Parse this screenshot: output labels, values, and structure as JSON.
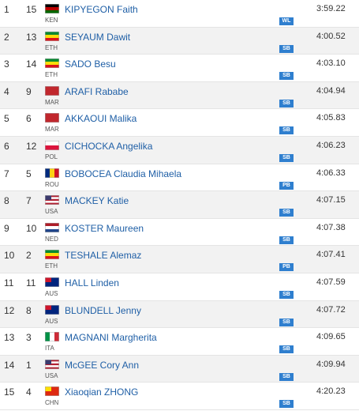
{
  "rows": [
    {
      "rank": 1,
      "bib": 15,
      "country": "KEN",
      "name": "KIPYEGON Faith",
      "badge": "WL",
      "time": "3:59.22"
    },
    {
      "rank": 2,
      "bib": 13,
      "country": "ETH",
      "name": "SEYAUM Dawit",
      "badge": "SB",
      "time": "4:00.52"
    },
    {
      "rank": 3,
      "bib": 14,
      "country": "ETH",
      "name": "SADO Besu",
      "badge": "SB",
      "time": "4:03.10"
    },
    {
      "rank": 4,
      "bib": 9,
      "country": "MAR",
      "name": "ARAFI Rababe",
      "badge": "SB",
      "time": "4:04.94"
    },
    {
      "rank": 5,
      "bib": 6,
      "country": "MAR",
      "name": "AKKAOUI Malika",
      "badge": "SB",
      "time": "4:05.83"
    },
    {
      "rank": 6,
      "bib": 12,
      "country": "POL",
      "name": "CICHOCKA Angelika",
      "badge": "SB",
      "time": "4:06.23"
    },
    {
      "rank": 7,
      "bib": 5,
      "country": "ROU",
      "name": "BOBOCEA Claudia Mihaela",
      "badge": "PB",
      "time": "4:06.33"
    },
    {
      "rank": 8,
      "bib": 7,
      "country": "USA",
      "name": "MACKEY Katie",
      "badge": "SB",
      "time": "4:07.15"
    },
    {
      "rank": 9,
      "bib": 10,
      "country": "NED",
      "name": "KOSTER Maureen",
      "badge": "SB",
      "time": "4:07.38"
    },
    {
      "rank": 10,
      "bib": 2,
      "country": "ETH",
      "name": "TESHALE Alemaz",
      "badge": "PB",
      "time": "4:07.41"
    },
    {
      "rank": 11,
      "bib": 11,
      "country": "AUS",
      "name": "HALL Linden",
      "badge": "SB",
      "time": "4:07.59"
    },
    {
      "rank": 12,
      "bib": 8,
      "country": "AUS",
      "name": "BLUNDELL Jenny",
      "badge": "SB",
      "time": "4:07.72"
    },
    {
      "rank": 13,
      "bib": 3,
      "country": "ITA",
      "name": "MAGNANI Margherita",
      "badge": "SB",
      "time": "4:09.65"
    },
    {
      "rank": 14,
      "bib": 1,
      "country": "USA",
      "name": "McGEE Cory Ann",
      "badge": "SB",
      "time": "4:09.94"
    },
    {
      "rank": 15,
      "bib": 4,
      "country": "CHN",
      "name": "Xiaoqian ZHONG",
      "badge": "SB",
      "time": "4:20.23"
    }
  ]
}
